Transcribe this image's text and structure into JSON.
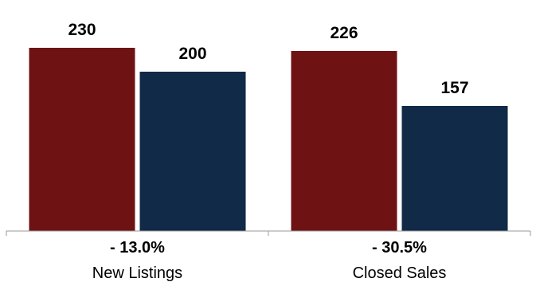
{
  "chart_data": {
    "type": "bar",
    "categories": [
      "New Listings",
      "Closed Sales"
    ],
    "change_labels": [
      "- 13.0%",
      "- 30.5%"
    ],
    "series": [
      {
        "values": [
          230,
          226
        ],
        "color": "#6e1214"
      },
      {
        "values": [
          200,
          157
        ],
        "color": "#102a47"
      }
    ],
    "ylim": [
      0,
      250
    ],
    "grid": false,
    "axis_color": "#999999"
  }
}
